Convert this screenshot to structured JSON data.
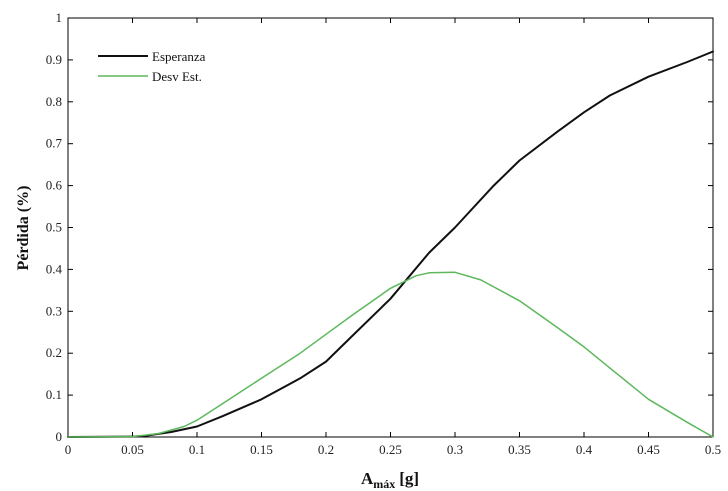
{
  "chart_data": {
    "type": "line",
    "xlabel_main": "A",
    "xlabel_sub": "máx",
    "xlabel_unit": "[g]",
    "ylabel": "Pérdida (%)",
    "xlim": [
      0,
      0.5
    ],
    "ylim": [
      0,
      1
    ],
    "grid": false,
    "legend_position": "top-left",
    "x_ticks": [
      "0",
      "0.05",
      "0.1",
      "0.15",
      "0.2",
      "0.25",
      "0.3",
      "0.35",
      "0.4",
      "0.45",
      "0.5"
    ],
    "y_ticks": [
      "0",
      "0.1",
      "0.2",
      "0.3",
      "0.4",
      "0.5",
      "0.6",
      "0.7",
      "0.8",
      "0.9",
      "1"
    ],
    "series": [
      {
        "name": "Esperanza",
        "color": "#111111",
        "points": [
          [
            0,
            0
          ],
          [
            0.05,
            0.001
          ],
          [
            0.06,
            0.003
          ],
          [
            0.08,
            0.012
          ],
          [
            0.1,
            0.025
          ],
          [
            0.12,
            0.05
          ],
          [
            0.15,
            0.09
          ],
          [
            0.18,
            0.14
          ],
          [
            0.2,
            0.18
          ],
          [
            0.22,
            0.24
          ],
          [
            0.25,
            0.33
          ],
          [
            0.28,
            0.44
          ],
          [
            0.3,
            0.5
          ],
          [
            0.33,
            0.6
          ],
          [
            0.35,
            0.66
          ],
          [
            0.38,
            0.73
          ],
          [
            0.4,
            0.775
          ],
          [
            0.42,
            0.815
          ],
          [
            0.45,
            0.86
          ],
          [
            0.48,
            0.895
          ],
          [
            0.5,
            0.92
          ]
        ]
      },
      {
        "name": "Desv Est.",
        "color": "#5cb85c",
        "points": [
          [
            0,
            0
          ],
          [
            0.05,
            0.001
          ],
          [
            0.07,
            0.008
          ],
          [
            0.09,
            0.025
          ],
          [
            0.1,
            0.04
          ],
          [
            0.12,
            0.08
          ],
          [
            0.15,
            0.14
          ],
          [
            0.18,
            0.2
          ],
          [
            0.2,
            0.245
          ],
          [
            0.22,
            0.29
          ],
          [
            0.25,
            0.355
          ],
          [
            0.27,
            0.385
          ],
          [
            0.28,
            0.392
          ],
          [
            0.3,
            0.393
          ],
          [
            0.32,
            0.375
          ],
          [
            0.35,
            0.325
          ],
          [
            0.38,
            0.26
          ],
          [
            0.4,
            0.215
          ],
          [
            0.42,
            0.165
          ],
          [
            0.45,
            0.09
          ],
          [
            0.48,
            0.035
          ],
          [
            0.5,
            0
          ]
        ]
      }
    ]
  }
}
